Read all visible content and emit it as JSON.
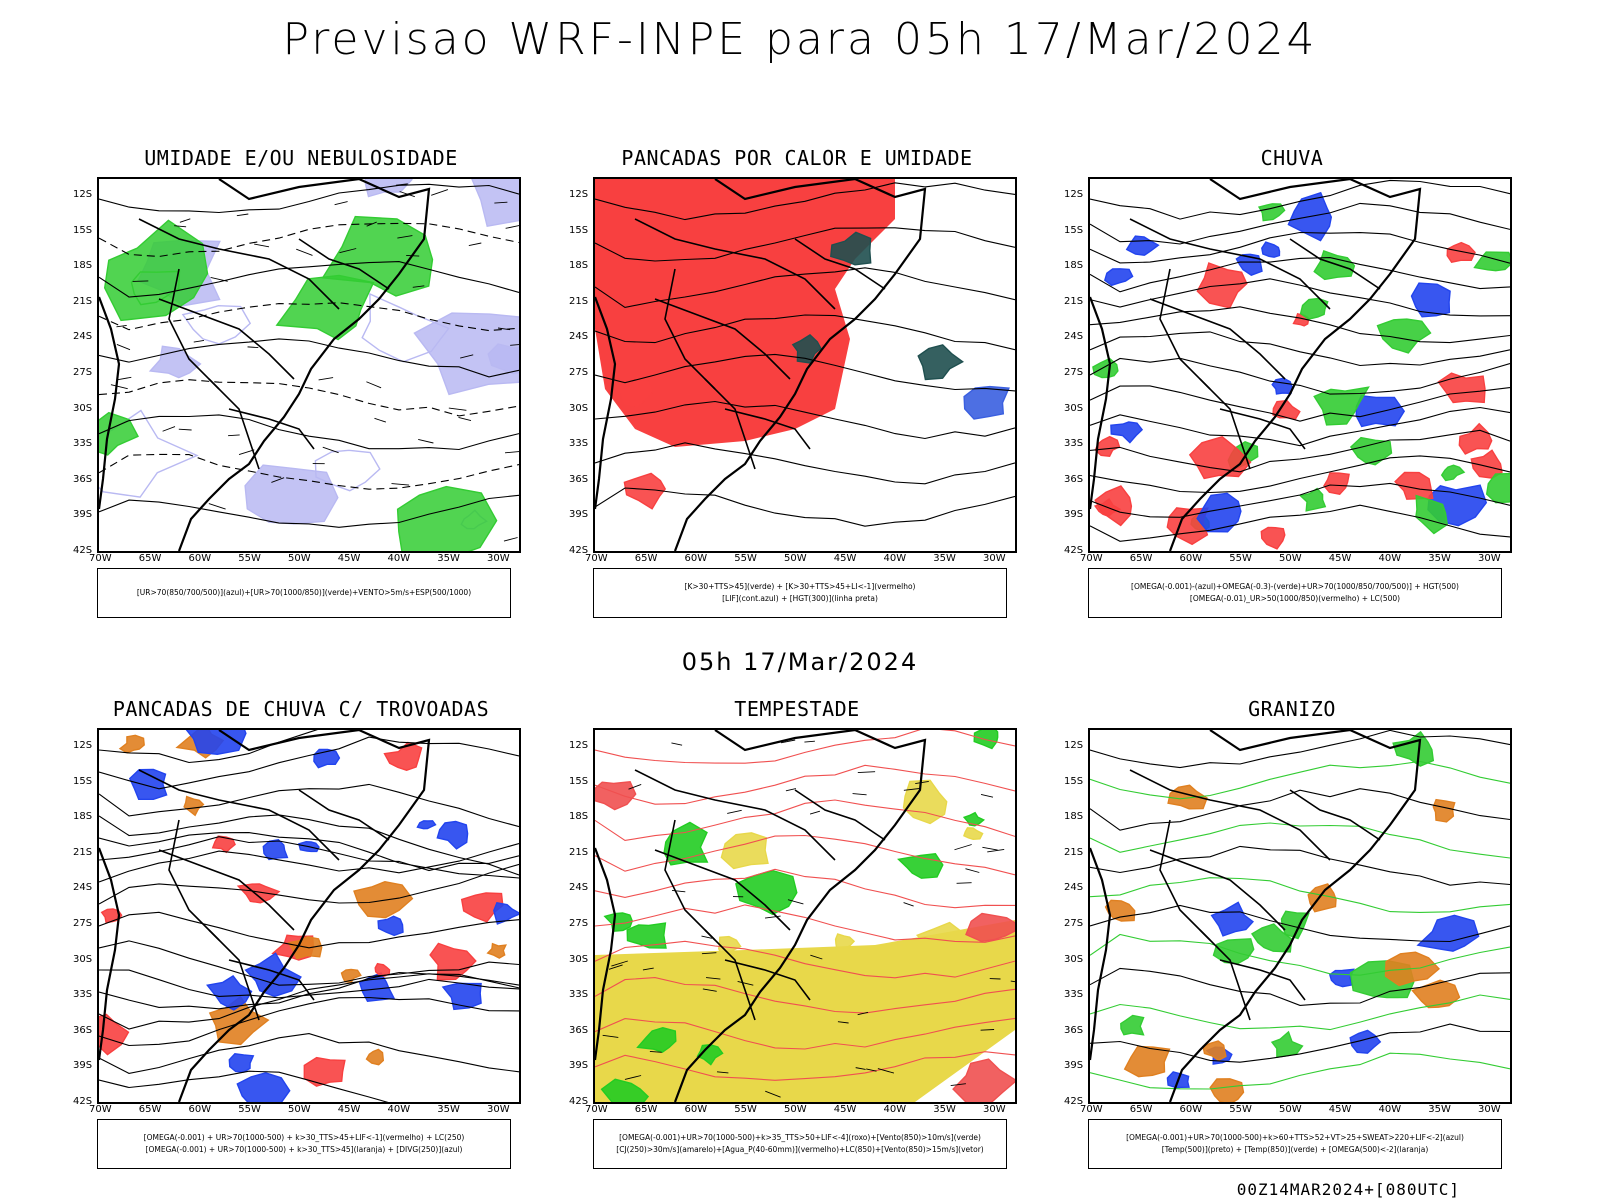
{
  "page": {
    "title": "Previsao WRF-INPE  para 05h 17/Mar/2024",
    "mid_title": "05h 17/Mar/2024",
    "footer": "00Z14MAR2024+[080UTC]"
  },
  "axes": {
    "lat": [
      "12S",
      "15S",
      "18S",
      "21S",
      "24S",
      "27S",
      "30S",
      "33S",
      "36S",
      "39S",
      "42S"
    ],
    "lon": [
      "70W",
      "65W",
      "60W",
      "55W",
      "50W",
      "45W",
      "40W",
      "35W",
      "30W"
    ]
  },
  "panels": [
    {
      "title": "UMIDADE E/OU NEBULOSIDADE",
      "legend": [
        "[UR>70(850/700/500)](azul)+[UR>70(1000/850)](verde)+VENTO>5m/s+ESP(500/1000)"
      ],
      "palette": [
        "#b9b9f2",
        "#33cc33",
        "#ff3b3b",
        "#000000"
      ]
    },
    {
      "title": "PANCADAS POR CALOR E UMIDADE",
      "legend": [
        "[K>30+TTS>45](verde) + [K>30+TTS>45+LI<-1](vermelho)",
        "[LIF](cont.azul) + [HGT(300)](linha preta)"
      ],
      "palette": [
        "#f84040",
        "#3a5fe0",
        "#1f4f4f",
        "#000000"
      ]
    },
    {
      "title": "CHUVA",
      "legend": [
        "[OMEGA(-0.001)-(azul)+OMEGA(-0.3)-(verde)+UR>70(1000/850/700/500)] + HGT(500)",
        "[OMEGA(-0.01)_UR>50(1000/850)(vermelho) + LC(500)"
      ],
      "palette": [
        "#2244ee",
        "#f84040",
        "#33cc33",
        "#000000"
      ]
    },
    {
      "title": "PANCADAS DE CHUVA C/ TROVOADAS",
      "legend": [
        "[OMEGA(-0.001) + UR>70(1000-500) + k>30_TTS>45+LIF<-1](vermelho) + LC(250)",
        "[OMEGA(-0.001) + UR>70(1000-500) + k>30_TTS>45](laranja) + [DIVG(250)](azul)"
      ],
      "palette": [
        "#f84040",
        "#e08020",
        "#2244ee",
        "#000000"
      ]
    },
    {
      "title": "TEMPESTADE",
      "legend": [
        "[OMEGA(-0.001)+UR>70(1000-500)+k>35_TTS>50+LIF<-4](roxo)+[Vento(850)>10m/s](verde)",
        "[CJ(250)>30m/s](amarelo)+[Agua_P(40-60mm)](vermelho)+LC(850)+[Vento(850)>15m/s](vetor)"
      ],
      "palette": [
        "#e8d84a",
        "#22cc22",
        "#f05050",
        "#9a22cc"
      ]
    },
    {
      "title": "GRANIZO",
      "legend": [
        "[OMEGA(-0.001)+UR>70(1000-500)+k>60+TTS>52+VT>25+SWEAT>220+LIF<-2](azul)",
        "[Temp(500)](preto) + [Temp(850)](verde) + [OMEGA(500)<-2](laranja)"
      ],
      "palette": [
        "#33cc33",
        "#2244ee",
        "#e08020",
        "#000000"
      ]
    }
  ]
}
